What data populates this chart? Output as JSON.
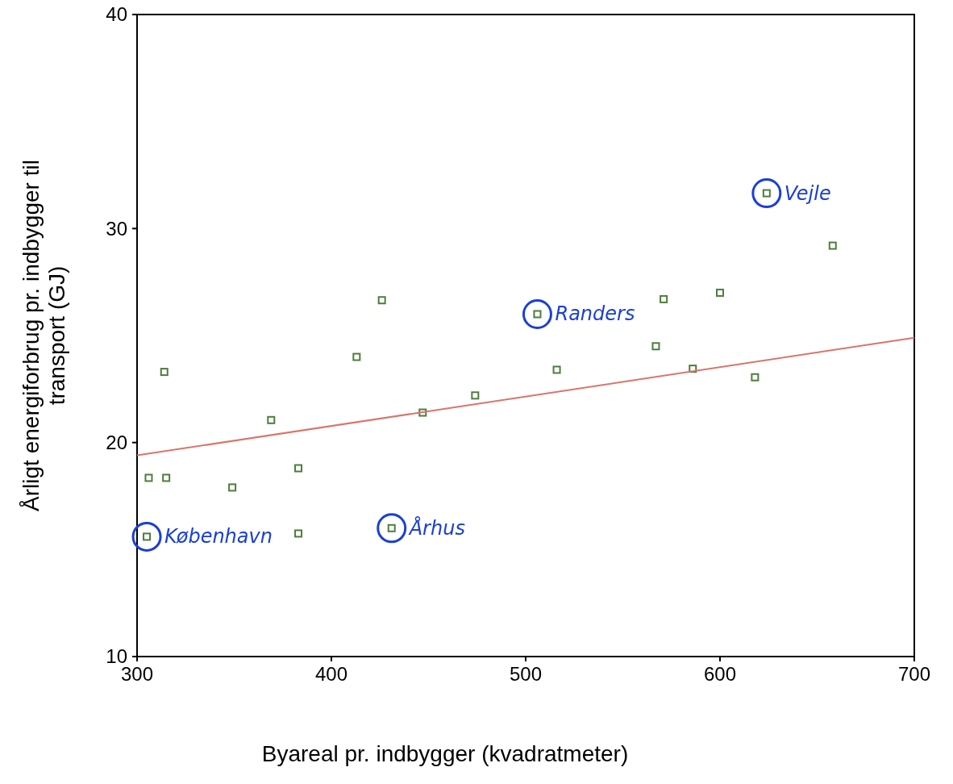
{
  "chart_data": {
    "type": "scatter",
    "xlabel": "Byareal pr. indbygger (kvadratmeter)",
    "ylabel": "Årligt energiforbrug pr. indbygger til transport (GJ)",
    "xlim": [
      300,
      700
    ],
    "xticks": [
      300,
      400,
      500,
      600,
      700
    ],
    "ylim": [
      10,
      40
    ],
    "yticks": [
      10,
      20,
      30,
      40
    ],
    "grid": false,
    "marker": "square",
    "series": [
      {
        "color": "#4e7d3c",
        "x": [
          306,
          315,
          314,
          305,
          349,
          369,
          383,
          383,
          413,
          426,
          431,
          447,
          474,
          506,
          516,
          567,
          571,
          586,
          600,
          618,
          624,
          658
        ],
        "values": [
          18.35,
          18.35,
          23.3,
          15.6,
          17.9,
          21.05,
          18.8,
          15.75,
          24.0,
          26.65,
          16.0,
          21.4,
          22.2,
          26.0,
          23.4,
          24.5,
          26.7,
          23.45,
          27.0,
          23.05,
          31.65,
          29.2
        ]
      },
      {
        "type": "line",
        "color": "#d9756b",
        "x": [
          300,
          700
        ],
        "values": [
          19.4,
          24.9
        ],
        "marker": "none",
        "line_style": "solid"
      }
    ],
    "annotations": [
      {
        "text": "København",
        "x": 305,
        "y": 15.6
      },
      {
        "text": "Århus",
        "x": 431,
        "y": 16.0
      },
      {
        "text": "Randers",
        "x": 506,
        "y": 26.0
      },
      {
        "text": "Vejle",
        "x": 624,
        "y": 31.65
      }
    ]
  }
}
